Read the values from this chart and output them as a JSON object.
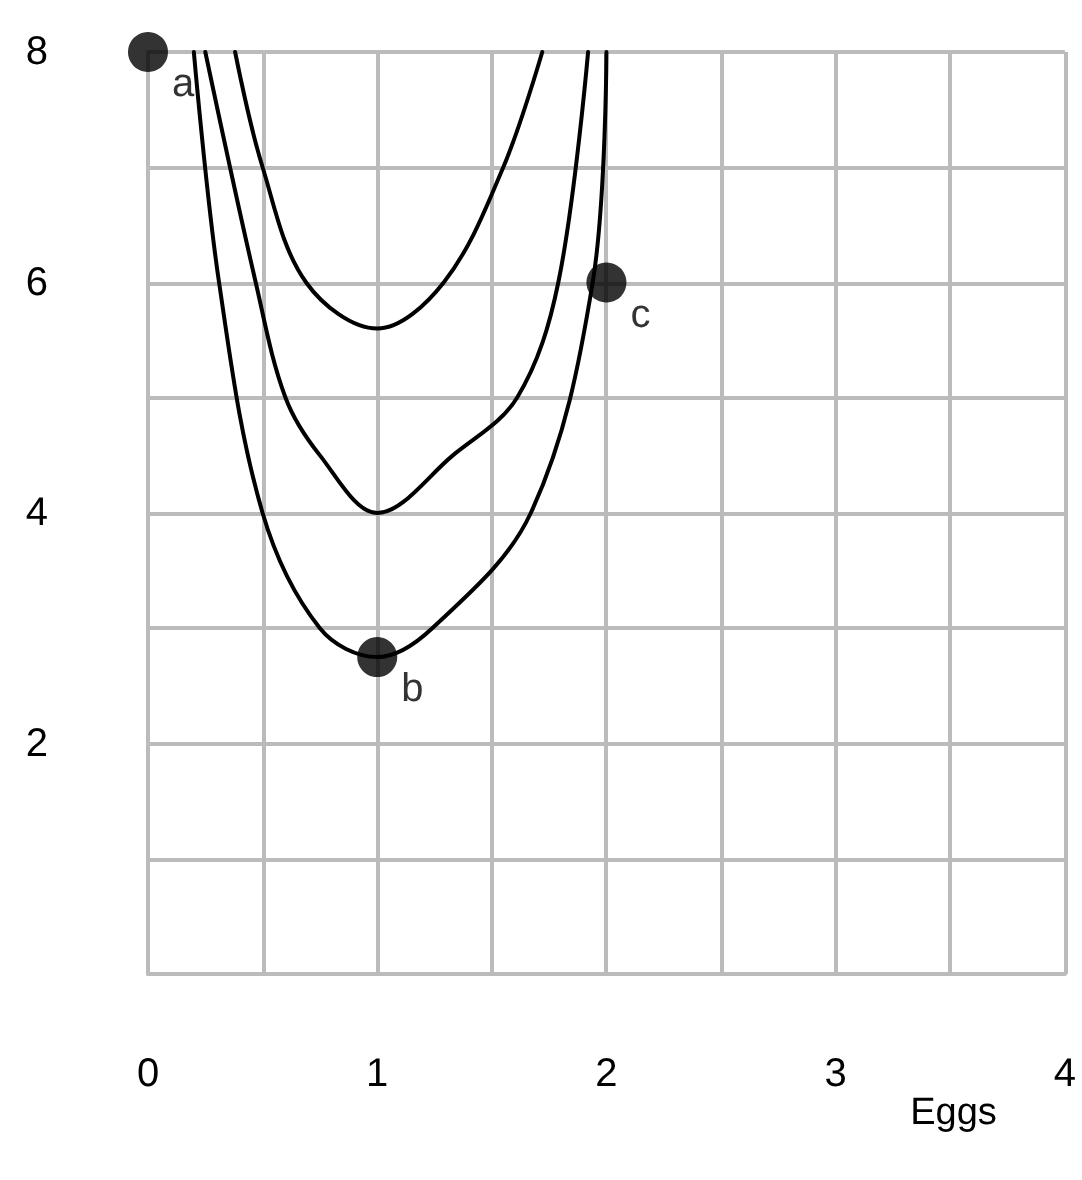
{
  "chart_data": {
    "type": "line",
    "xlabel": "Eggs",
    "xlim": [
      0,
      4
    ],
    "xticks": [
      0,
      {
        "value": 0.5,
        "label": null
      },
      1,
      {
        "value": 1.5,
        "label": null
      },
      2,
      {
        "value": 2.5,
        "label": null
      },
      3,
      {
        "value": 3.5,
        "label": null
      },
      4
    ],
    "ylim": [
      0,
      8
    ],
    "yticks": [
      {
        "value": 0,
        "label": null
      },
      {
        "value": 1,
        "label": null
      },
      2,
      {
        "value": 3,
        "label": null
      },
      4,
      {
        "value": 5,
        "label": null
      },
      6,
      {
        "value": 7,
        "label": null
      },
      8
    ],
    "grid": true,
    "line_style": "solid",
    "marker": "none",
    "series": [
      {
        "color": "#000000",
        "x": [
          0.2,
          0.31,
          0.5,
          0.75,
          1,
          1.24,
          1.67,
          1.94,
          2.0
        ],
        "values": [
          8,
          6,
          4,
          3,
          2.75,
          3,
          4,
          6,
          8
        ]
      },
      {
        "color": "#000000",
        "x": [
          0.25,
          0.47,
          0.6,
          0.75,
          1,
          1.33,
          1.61,
          1.79,
          1.92
        ],
        "values": [
          8,
          6,
          5,
          4.5,
          4,
          4.5,
          5,
          6,
          8
        ]
      },
      {
        "color": "#000000",
        "x": [
          0.38,
          0.5,
          0.69,
          1,
          1.29,
          1.55,
          1.72
        ],
        "values": [
          8,
          7,
          6,
          5.6,
          6,
          7,
          8
        ]
      },
      {
        "type": "scatter",
        "marker": "circle",
        "color": "#000000",
        "x": [
          0,
          1,
          2
        ],
        "values": [
          8,
          2.75,
          6
        ]
      }
    ],
    "annotations": [
      {
        "text": "a",
        "x": 0,
        "y": 8
      },
      {
        "text": "b",
        "x": 1,
        "y": 2.75
      },
      {
        "text": "c",
        "x": 2,
        "y": 6
      }
    ]
  }
}
